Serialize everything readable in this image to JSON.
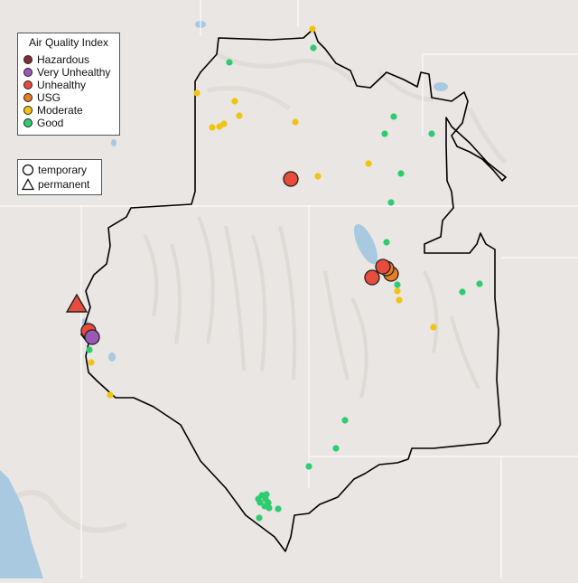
{
  "legend": {
    "title": "Air Quality Index",
    "categories": [
      {
        "label": "Hazardous",
        "color": "#7e2e34"
      },
      {
        "label": "Very Unhealthy",
        "color": "#9b59b6"
      },
      {
        "label": "Unhealthy",
        "color": "#e74c3c"
      },
      {
        "label": "USG",
        "color": "#e67e22"
      },
      {
        "label": "Moderate",
        "color": "#f1c40f"
      },
      {
        "label": "Good",
        "color": "#2ecc71"
      }
    ]
  },
  "monitor_types": [
    {
      "label": "temporary",
      "shape": "circle-icon"
    },
    {
      "label": "permanent",
      "shape": "triangle-icon"
    }
  ],
  "colors": {
    "good": "#2ecc71",
    "moderate": "#f1c40f",
    "usg": "#e67e22",
    "unhealthy": "#e74c3c",
    "very_unhealthy": "#9b59b6",
    "background": "#e9e6e3",
    "water": "#a9c9e0",
    "boundary": "#000000"
  }
}
